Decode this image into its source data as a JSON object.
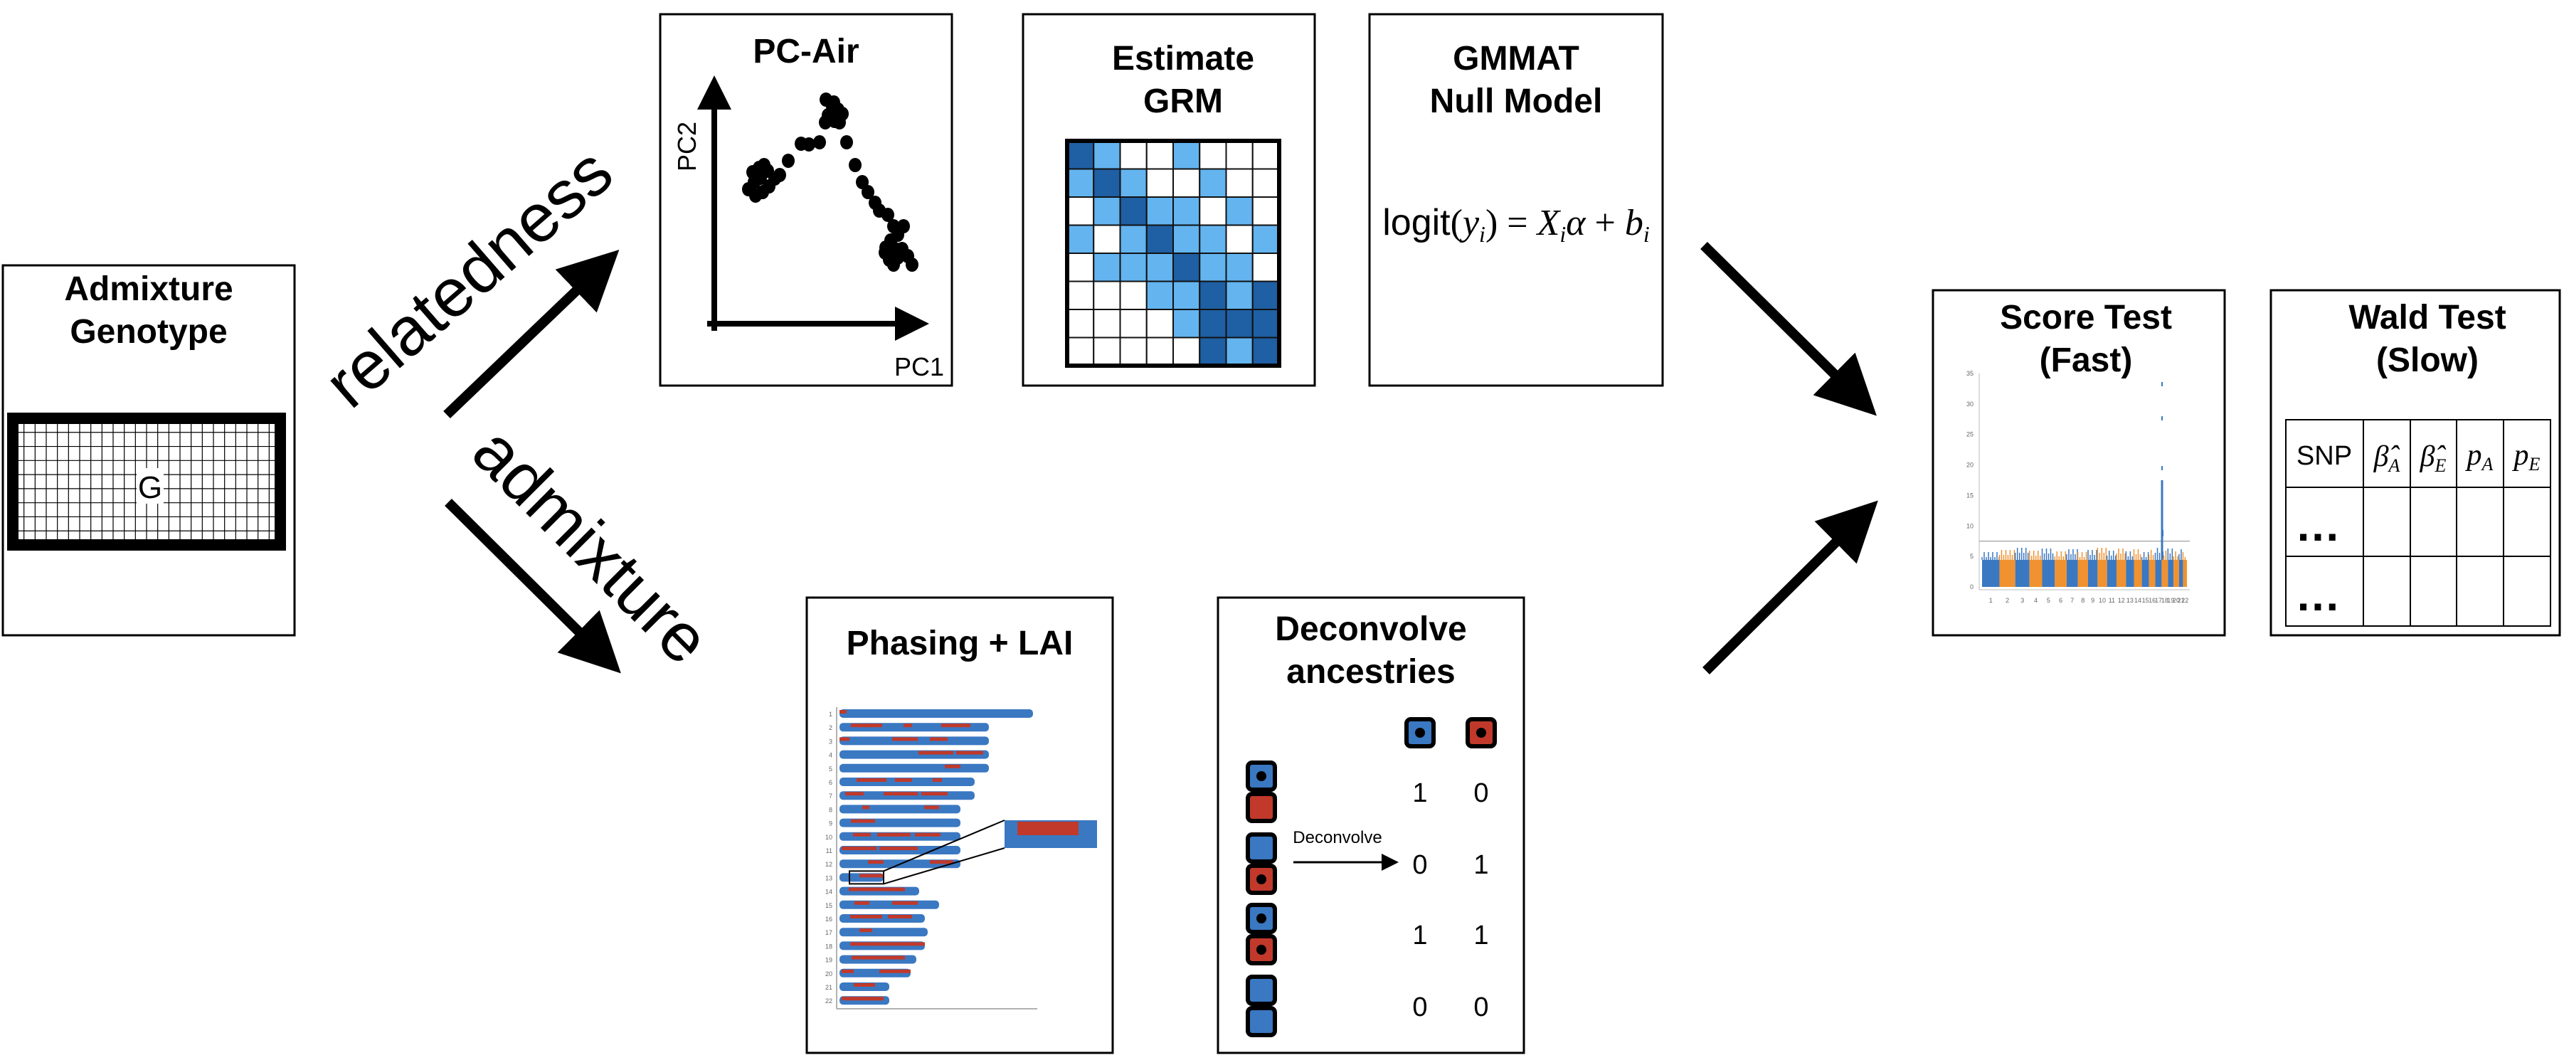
{
  "admixture_box": {
    "title_line1": "Admixture",
    "title_line2": "Genotype",
    "matrix_label": "G"
  },
  "flow_labels": {
    "relatedness": "relatedness",
    "admixture": "admixture"
  },
  "pcair_box": {
    "title": "PC-Air",
    "x_axis_label": "PC1",
    "y_axis_label": "PC2"
  },
  "grm_box": {
    "title_line1": "Estimate",
    "title_line2": "GRM"
  },
  "gmmat_box": {
    "title_line1": "GMMAT",
    "title_line2": "Null Model"
  },
  "phasing_box": {
    "title": "Phasing + LAI",
    "chromosome_labels": [
      "1",
      "2",
      "3",
      "4",
      "5",
      "6",
      "7",
      "8",
      "9",
      "10",
      "11",
      "12",
      "13",
      "14",
      "15",
      "16",
      "17",
      "18",
      "19",
      "20",
      "21",
      "22"
    ]
  },
  "deconvolve_box": {
    "title_line1": "Deconvolve",
    "title_line2": "ancestries",
    "arrow_label": "Deconvolve",
    "rows": [
      [
        "1",
        "0"
      ],
      [
        "0",
        "1"
      ],
      [
        "1",
        "1"
      ],
      [
        "0",
        "0"
      ]
    ]
  },
  "score_box": {
    "title_line1": "Score Test",
    "title_line2": "(Fast)",
    "y_ticks": [
      "35",
      "30",
      "25",
      "20",
      "15",
      "10",
      "5",
      "0"
    ],
    "x_ticks": [
      "1",
      "2",
      "3",
      "4",
      "5",
      "6",
      "7",
      "8",
      "9",
      "10",
      "11",
      "12",
      "13",
      "14",
      "15",
      "16",
      "17",
      "18",
      "19",
      "20",
      "21",
      "22"
    ]
  },
  "wald_box": {
    "title_line1": "Wald Test",
    "title_line2": "(Slow)",
    "header_snp": "SNP",
    "row_ellipsis": "…"
  },
  "colors": {
    "ancestry_blue": "#3a78c2",
    "ancestry_red": "#c0392b",
    "manhattan_orange": "#f0922f",
    "grm_dark": "#1f5fa3",
    "grm_light": "#63b4ef"
  }
}
